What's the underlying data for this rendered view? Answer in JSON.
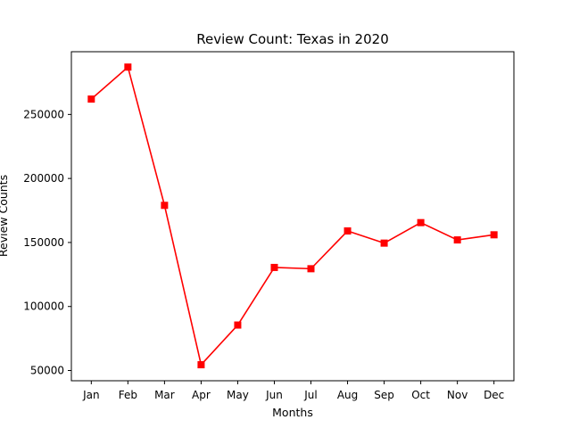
{
  "chart_data": {
    "type": "line",
    "title": "Review Count: Texas in 2020",
    "xlabel": "Months",
    "ylabel": "Review Counts",
    "categories": [
      "Jan",
      "Feb",
      "Mar",
      "Apr",
      "May",
      "Jun",
      "Jul",
      "Aug",
      "Sep",
      "Oct",
      "Nov",
      "Dec"
    ],
    "series": [
      {
        "values": [
          262000,
          287000,
          179000,
          54500,
          85500,
          130500,
          129500,
          159000,
          149500,
          165500,
          152000,
          156000
        ],
        "color": "#ff0000",
        "marker": "square"
      }
    ],
    "yticks": [
      50000,
      100000,
      150000,
      200000,
      250000
    ],
    "ylim": [
      42000,
      299000
    ],
    "grid": false
  }
}
